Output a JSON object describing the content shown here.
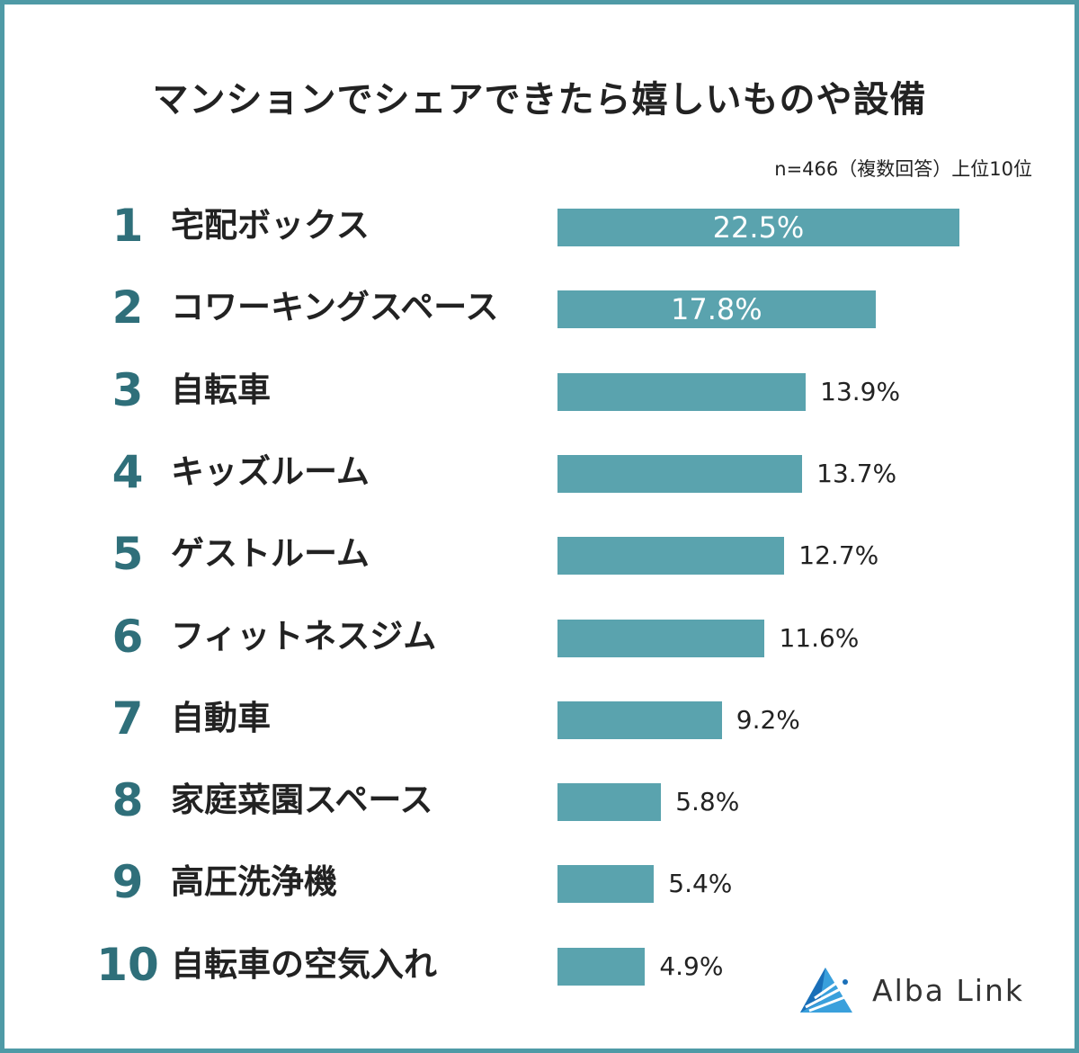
{
  "chart_data": {
    "type": "bar",
    "title": "マンションでシェアできたら嬉しいものや設備",
    "note": "n=466（複数回答）上位10位",
    "ranks": [
      "1",
      "2",
      "3",
      "4",
      "5",
      "6",
      "7",
      "8",
      "9",
      "10"
    ],
    "categories": [
      "宅配ボックス",
      "コワーキングスペース",
      "自転車",
      "キッズルーム",
      "ゲストルーム",
      "フィットネスジム",
      "自動車",
      "家庭菜園スペース",
      "高圧洗浄機",
      "自転車の空気入れ"
    ],
    "values": [
      22.5,
      17.8,
      13.9,
      13.7,
      12.7,
      11.6,
      9.2,
      5.8,
      5.4,
      4.9
    ],
    "value_labels": [
      "22.5%",
      "17.8%",
      "13.9%",
      "13.7%",
      "12.7%",
      "11.6%",
      "9.2%",
      "5.8%",
      "5.4%",
      "4.9%"
    ],
    "bar_color": "#5aa3ae",
    "xlabel": "",
    "ylabel": ""
  },
  "brand": {
    "name": "Alba Link"
  }
}
